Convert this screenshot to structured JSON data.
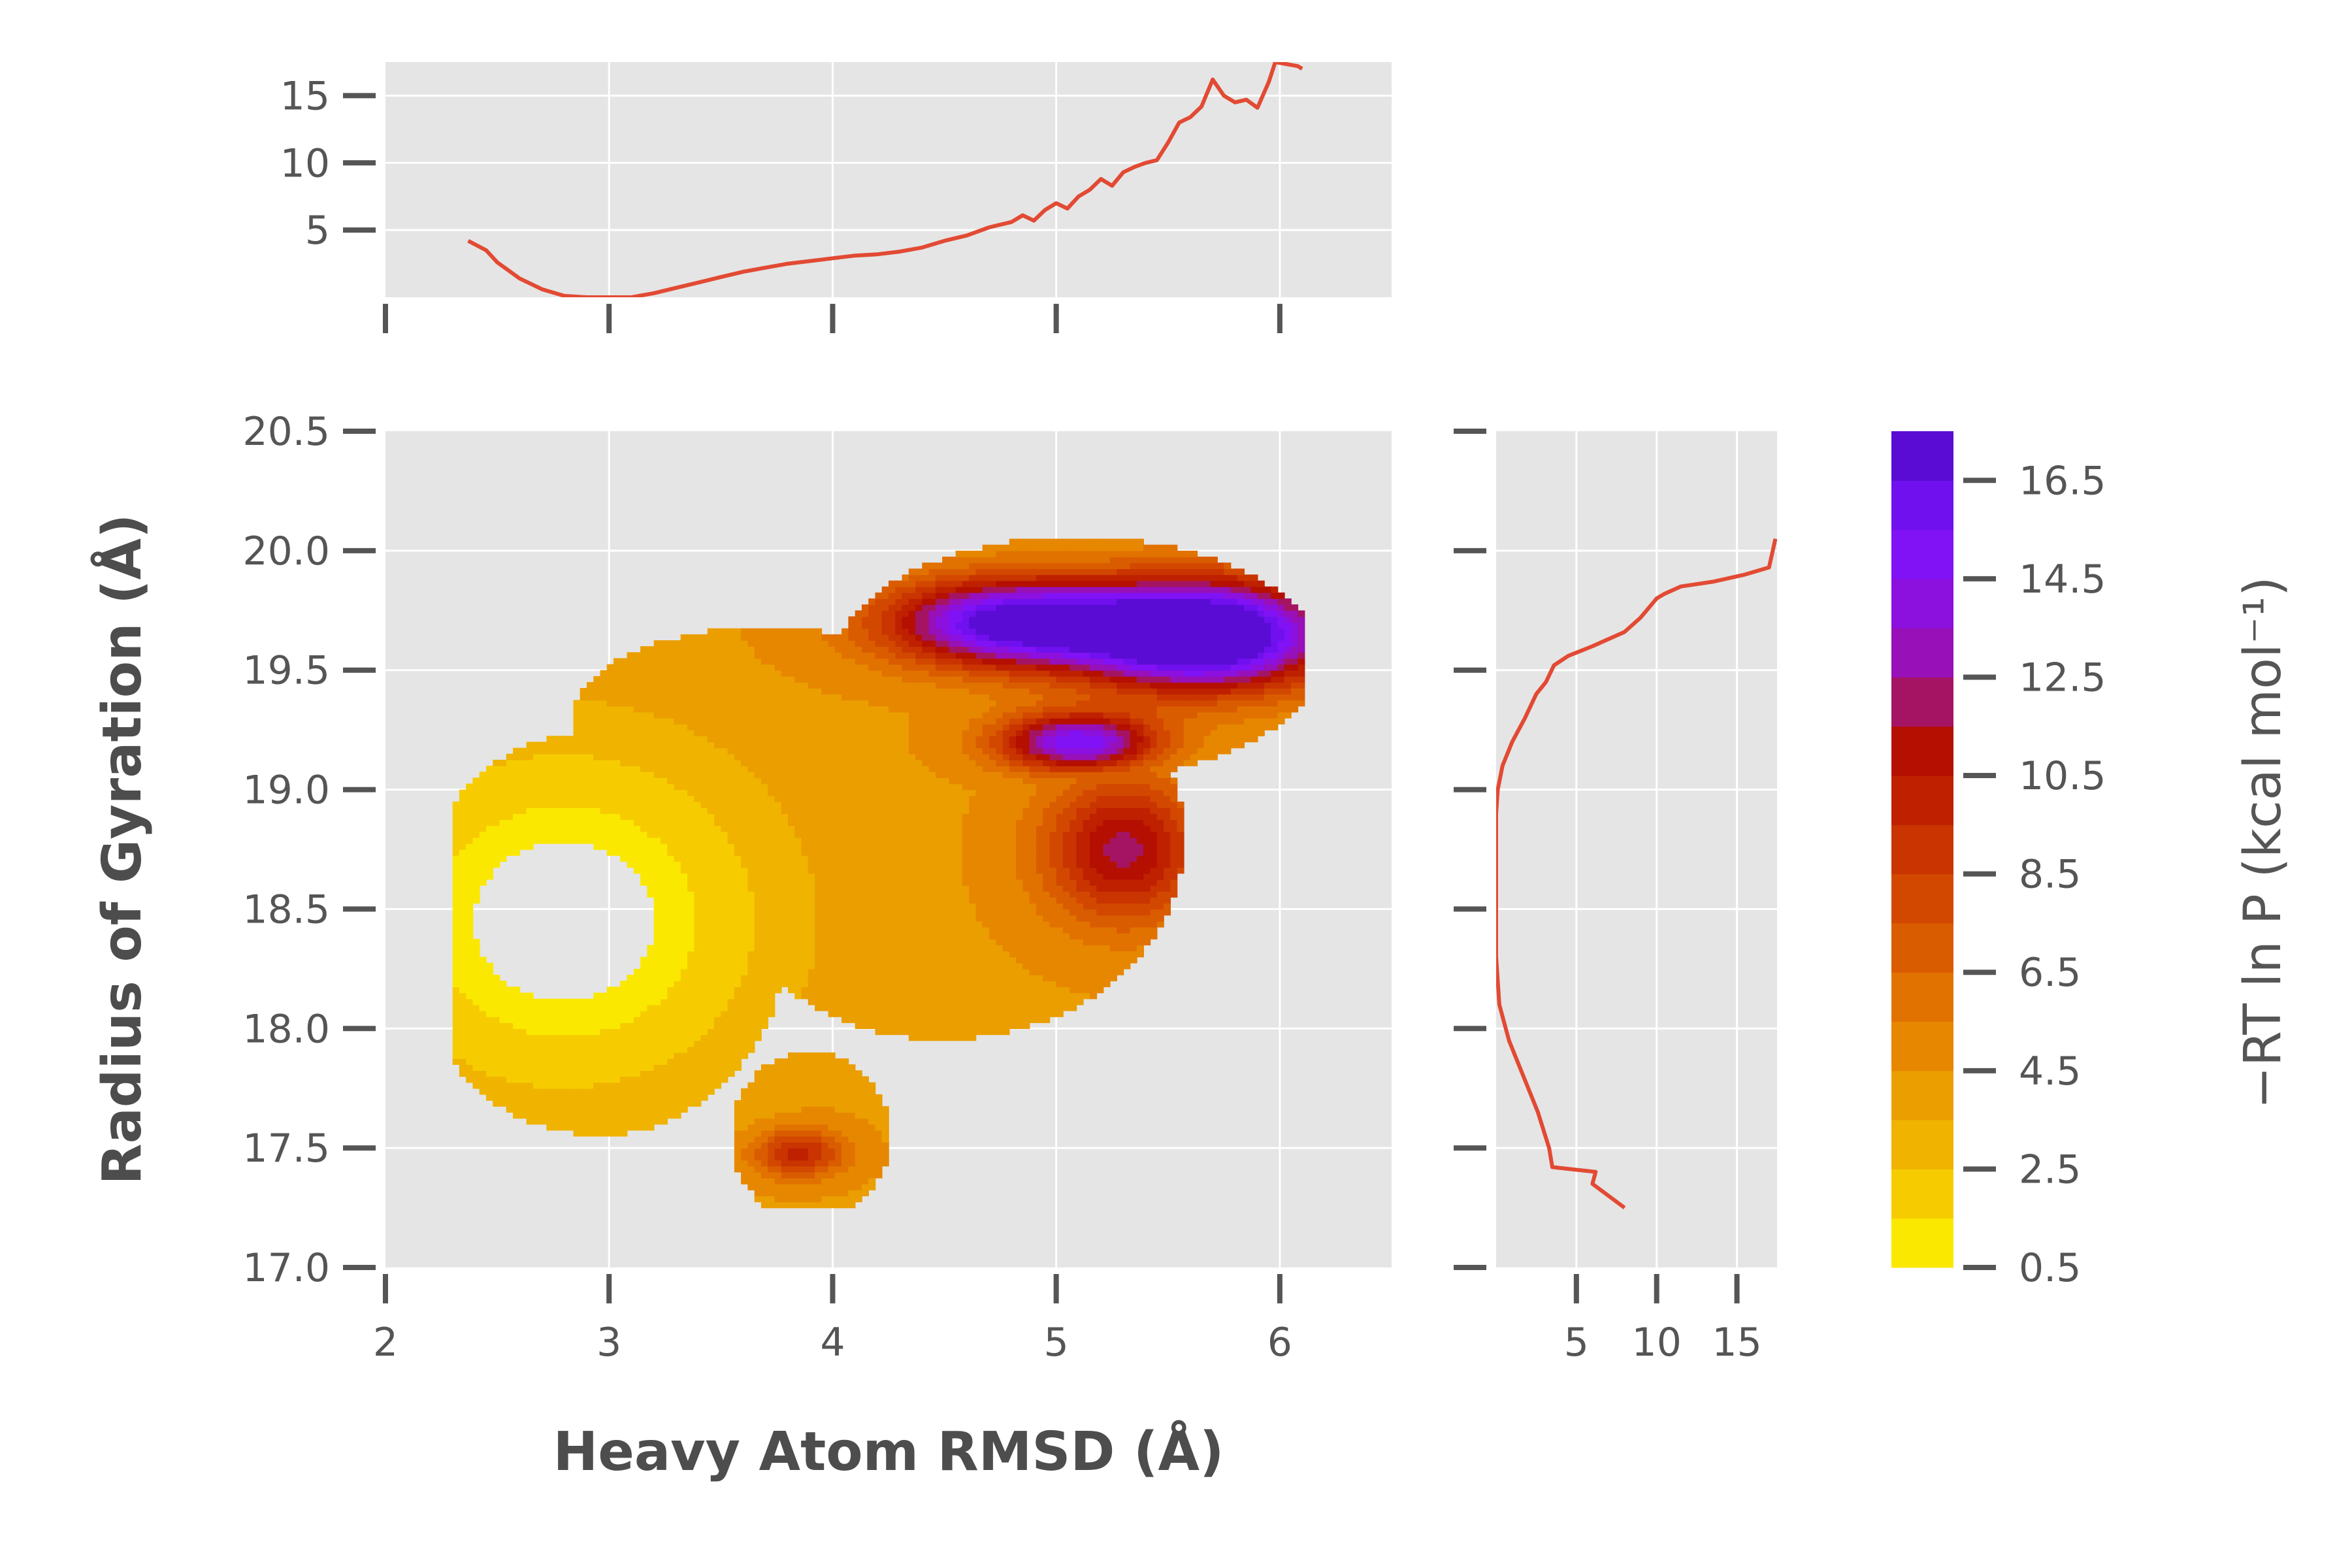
{
  "chart_data": {
    "type": "contour",
    "description_free": true,
    "xlabel": "Heavy Atom RMSD (Å)",
    "ylabel": "Radius of Gyration (Å)",
    "colorbar_label": "−RT ln P (kcal mol⁻¹)",
    "colors": {
      "panel_bg": "#e5e5e5",
      "grid": "#ffffff",
      "tick": "#555555",
      "line": "#e24a33",
      "colormap": [
        "#fbe800",
        "#f6cc00",
        "#efb300",
        "#eb9e00",
        "#e78700",
        "#e17200",
        "#da5c00",
        "#d34800",
        "#c93400",
        "#be2000",
        "#b40f00",
        "#a51463",
        "#9710b8",
        "#8c10de",
        "#8012f5",
        "#7010ee",
        "#5a0cd4",
        "#43069c",
        "#2a0040"
      ]
    },
    "main": {
      "xlim": [
        2,
        6.5
      ],
      "ylim": [
        17.0,
        20.5
      ],
      "xticks": [
        2,
        3,
        4,
        5,
        6
      ],
      "xtick_labels": [
        "2",
        "3",
        "4",
        "5",
        "6"
      ],
      "yticks": [
        17.0,
        17.5,
        18.0,
        18.5,
        19.0,
        19.5,
        20.0,
        20.5
      ],
      "ytick_labels": [
        "17.0",
        "17.5",
        "18.0",
        "18.5",
        "19.0",
        "19.5",
        "20.0",
        "20.5"
      ],
      "contour_levels": [
        0.5,
        1.5,
        2.5,
        3.5,
        4.5,
        5.5,
        6.5,
        7.5,
        8.5,
        9.5,
        10.5,
        11.5,
        12.5,
        13.5,
        14.5,
        15.5,
        16.5,
        17.5
      ],
      "basins": [
        {
          "center_x": 2.8,
          "center_y": 18.5,
          "depth": 0.5
        },
        {
          "center_x": 3.9,
          "center_y": 17.5,
          "depth": 5.0
        },
        {
          "center_x": 5.4,
          "center_y": 18.8,
          "depth": 7.0
        },
        {
          "center_x": 5.7,
          "center_y": 19.6,
          "depth": 17.0
        }
      ]
    },
    "top_marginal": {
      "xlim": [
        2,
        6.5
      ],
      "ylim": [
        0,
        17.5
      ],
      "yticks": [
        5,
        10,
        15
      ],
      "ytick_labels": [
        "5",
        "10",
        "15"
      ],
      "x": [
        2.37,
        2.45,
        2.5,
        2.6,
        2.7,
        2.8,
        2.9,
        3.0,
        3.1,
        3.2,
        3.3,
        3.4,
        3.5,
        3.6,
        3.7,
        3.8,
        3.9,
        4.0,
        4.1,
        4.2,
        4.3,
        4.4,
        4.5,
        4.6,
        4.7,
        4.8,
        4.85,
        4.9,
        4.95,
        5.0,
        5.05,
        5.1,
        5.15,
        5.2,
        5.25,
        5.3,
        5.35,
        5.4,
        5.45,
        5.5,
        5.55,
        5.6,
        5.65,
        5.7,
        5.75,
        5.8,
        5.85,
        5.9,
        5.95,
        5.98,
        6.08,
        6.1
      ],
      "y": [
        4.2,
        3.5,
        2.6,
        1.4,
        0.6,
        0.1,
        0.0,
        0.0,
        0.0,
        0.3,
        0.7,
        1.1,
        1.5,
        1.9,
        2.2,
        2.5,
        2.7,
        2.9,
        3.1,
        3.2,
        3.4,
        3.7,
        4.2,
        4.6,
        5.2,
        5.6,
        6.1,
        5.7,
        6.5,
        7.0,
        6.6,
        7.5,
        8.0,
        8.8,
        8.3,
        9.3,
        9.7,
        10.0,
        10.2,
        11.5,
        13.0,
        13.4,
        14.2,
        16.2,
        15.0,
        14.5,
        14.7,
        14.1,
        16.0,
        17.5,
        17.2,
        17.0
      ]
    },
    "right_marginal": {
      "xlim": [
        0,
        17.5
      ],
      "ylim": [
        17.0,
        20.5
      ],
      "xticks": [
        5,
        10,
        15
      ],
      "xtick_labels": [
        "5",
        "10",
        "15"
      ],
      "x": [
        8.0,
        6.0,
        6.2,
        3.5,
        3.3,
        2.6,
        1.4,
        0.8,
        0.2,
        0.0,
        0.0,
        0.0,
        0.0,
        0.1,
        0.4,
        1.0,
        1.8,
        2.5,
        3.1,
        3.6,
        4.5,
        6.0,
        8.0,
        9.0,
        10.0,
        10.5,
        11.5,
        13.5,
        15.5,
        17.0,
        17.4
      ],
      "y": [
        17.25,
        17.35,
        17.4,
        17.42,
        17.5,
        17.65,
        17.85,
        17.95,
        18.1,
        18.3,
        18.5,
        18.7,
        18.9,
        19.0,
        19.1,
        19.2,
        19.3,
        19.4,
        19.45,
        19.52,
        19.56,
        19.6,
        19.66,
        19.72,
        19.8,
        19.82,
        19.85,
        19.87,
        19.9,
        19.93,
        20.05
      ]
    },
    "colorbar": {
      "levels": [
        0.5,
        1.5,
        2.5,
        3.5,
        4.5,
        5.5,
        6.5,
        7.5,
        8.5,
        9.5,
        10.5,
        11.5,
        12.5,
        13.5,
        14.5,
        15.5,
        16.5,
        17.5
      ],
      "ticks": [
        0.5,
        2.5,
        4.5,
        6.5,
        8.5,
        10.5,
        12.5,
        14.5,
        16.5
      ],
      "tick_labels": [
        "0.5",
        "2.5",
        "4.5",
        "6.5",
        "8.5",
        "10.5",
        "12.5",
        "14.5",
        "16.5"
      ],
      "range": [
        0.5,
        17.5
      ]
    }
  }
}
